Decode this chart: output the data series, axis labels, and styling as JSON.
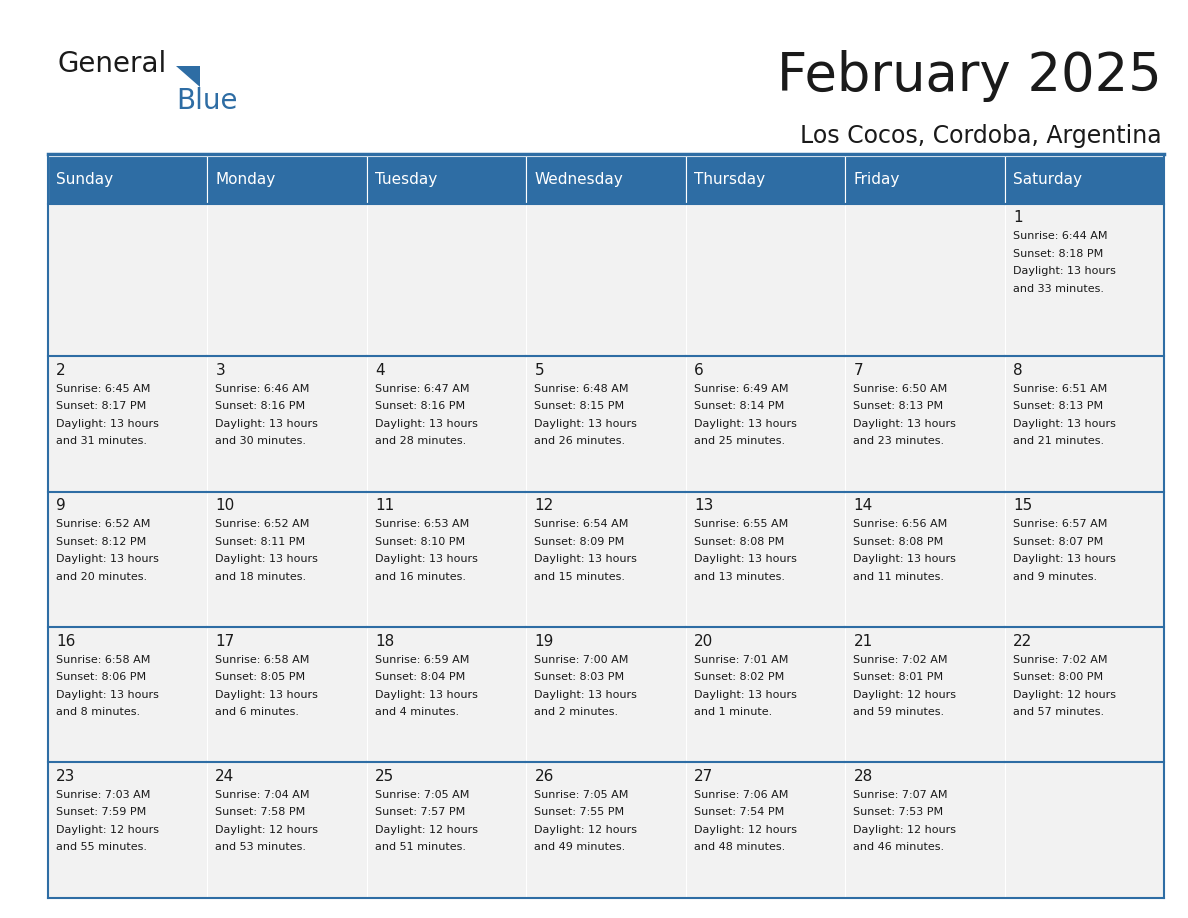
{
  "title": "February 2025",
  "subtitle": "Los Cocos, Cordoba, Argentina",
  "header_bg": "#2E6DA4",
  "header_text_color": "#FFFFFF",
  "cell_bg": "#F2F2F2",
  "border_color": "#2E6DA4",
  "text_color": "#1a1a1a",
  "days_of_week": [
    "Sunday",
    "Monday",
    "Tuesday",
    "Wednesday",
    "Thursday",
    "Friday",
    "Saturday"
  ],
  "calendar": [
    [
      {
        "day": null,
        "sunrise": null,
        "sunset": null,
        "daylight": null
      },
      {
        "day": null,
        "sunrise": null,
        "sunset": null,
        "daylight": null
      },
      {
        "day": null,
        "sunrise": null,
        "sunset": null,
        "daylight": null
      },
      {
        "day": null,
        "sunrise": null,
        "sunset": null,
        "daylight": null
      },
      {
        "day": null,
        "sunrise": null,
        "sunset": null,
        "daylight": null
      },
      {
        "day": null,
        "sunrise": null,
        "sunset": null,
        "daylight": null
      },
      {
        "day": 1,
        "sunrise": "6:44 AM",
        "sunset": "8:18 PM",
        "daylight": "13 hours\nand 33 minutes."
      }
    ],
    [
      {
        "day": 2,
        "sunrise": "6:45 AM",
        "sunset": "8:17 PM",
        "daylight": "13 hours\nand 31 minutes."
      },
      {
        "day": 3,
        "sunrise": "6:46 AM",
        "sunset": "8:16 PM",
        "daylight": "13 hours\nand 30 minutes."
      },
      {
        "day": 4,
        "sunrise": "6:47 AM",
        "sunset": "8:16 PM",
        "daylight": "13 hours\nand 28 minutes."
      },
      {
        "day": 5,
        "sunrise": "6:48 AM",
        "sunset": "8:15 PM",
        "daylight": "13 hours\nand 26 minutes."
      },
      {
        "day": 6,
        "sunrise": "6:49 AM",
        "sunset": "8:14 PM",
        "daylight": "13 hours\nand 25 minutes."
      },
      {
        "day": 7,
        "sunrise": "6:50 AM",
        "sunset": "8:13 PM",
        "daylight": "13 hours\nand 23 minutes."
      },
      {
        "day": 8,
        "sunrise": "6:51 AM",
        "sunset": "8:13 PM",
        "daylight": "13 hours\nand 21 minutes."
      }
    ],
    [
      {
        "day": 9,
        "sunrise": "6:52 AM",
        "sunset": "8:12 PM",
        "daylight": "13 hours\nand 20 minutes."
      },
      {
        "day": 10,
        "sunrise": "6:52 AM",
        "sunset": "8:11 PM",
        "daylight": "13 hours\nand 18 minutes."
      },
      {
        "day": 11,
        "sunrise": "6:53 AM",
        "sunset": "8:10 PM",
        "daylight": "13 hours\nand 16 minutes."
      },
      {
        "day": 12,
        "sunrise": "6:54 AM",
        "sunset": "8:09 PM",
        "daylight": "13 hours\nand 15 minutes."
      },
      {
        "day": 13,
        "sunrise": "6:55 AM",
        "sunset": "8:08 PM",
        "daylight": "13 hours\nand 13 minutes."
      },
      {
        "day": 14,
        "sunrise": "6:56 AM",
        "sunset": "8:08 PM",
        "daylight": "13 hours\nand 11 minutes."
      },
      {
        "day": 15,
        "sunrise": "6:57 AM",
        "sunset": "8:07 PM",
        "daylight": "13 hours\nand 9 minutes."
      }
    ],
    [
      {
        "day": 16,
        "sunrise": "6:58 AM",
        "sunset": "8:06 PM",
        "daylight": "13 hours\nand 8 minutes."
      },
      {
        "day": 17,
        "sunrise": "6:58 AM",
        "sunset": "8:05 PM",
        "daylight": "13 hours\nand 6 minutes."
      },
      {
        "day": 18,
        "sunrise": "6:59 AM",
        "sunset": "8:04 PM",
        "daylight": "13 hours\nand 4 minutes."
      },
      {
        "day": 19,
        "sunrise": "7:00 AM",
        "sunset": "8:03 PM",
        "daylight": "13 hours\nand 2 minutes."
      },
      {
        "day": 20,
        "sunrise": "7:01 AM",
        "sunset": "8:02 PM",
        "daylight": "13 hours\nand 1 minute."
      },
      {
        "day": 21,
        "sunrise": "7:02 AM",
        "sunset": "8:01 PM",
        "daylight": "12 hours\nand 59 minutes."
      },
      {
        "day": 22,
        "sunrise": "7:02 AM",
        "sunset": "8:00 PM",
        "daylight": "12 hours\nand 57 minutes."
      }
    ],
    [
      {
        "day": 23,
        "sunrise": "7:03 AM",
        "sunset": "7:59 PM",
        "daylight": "12 hours\nand 55 minutes."
      },
      {
        "day": 24,
        "sunrise": "7:04 AM",
        "sunset": "7:58 PM",
        "daylight": "12 hours\nand 53 minutes."
      },
      {
        "day": 25,
        "sunrise": "7:05 AM",
        "sunset": "7:57 PM",
        "daylight": "12 hours\nand 51 minutes."
      },
      {
        "day": 26,
        "sunrise": "7:05 AM",
        "sunset": "7:55 PM",
        "daylight": "12 hours\nand 49 minutes."
      },
      {
        "day": 27,
        "sunrise": "7:06 AM",
        "sunset": "7:54 PM",
        "daylight": "12 hours\nand 48 minutes."
      },
      {
        "day": 28,
        "sunrise": "7:07 AM",
        "sunset": "7:53 PM",
        "daylight": "12 hours\nand 46 minutes."
      },
      {
        "day": null,
        "sunrise": null,
        "sunset": null,
        "daylight": null
      }
    ]
  ]
}
